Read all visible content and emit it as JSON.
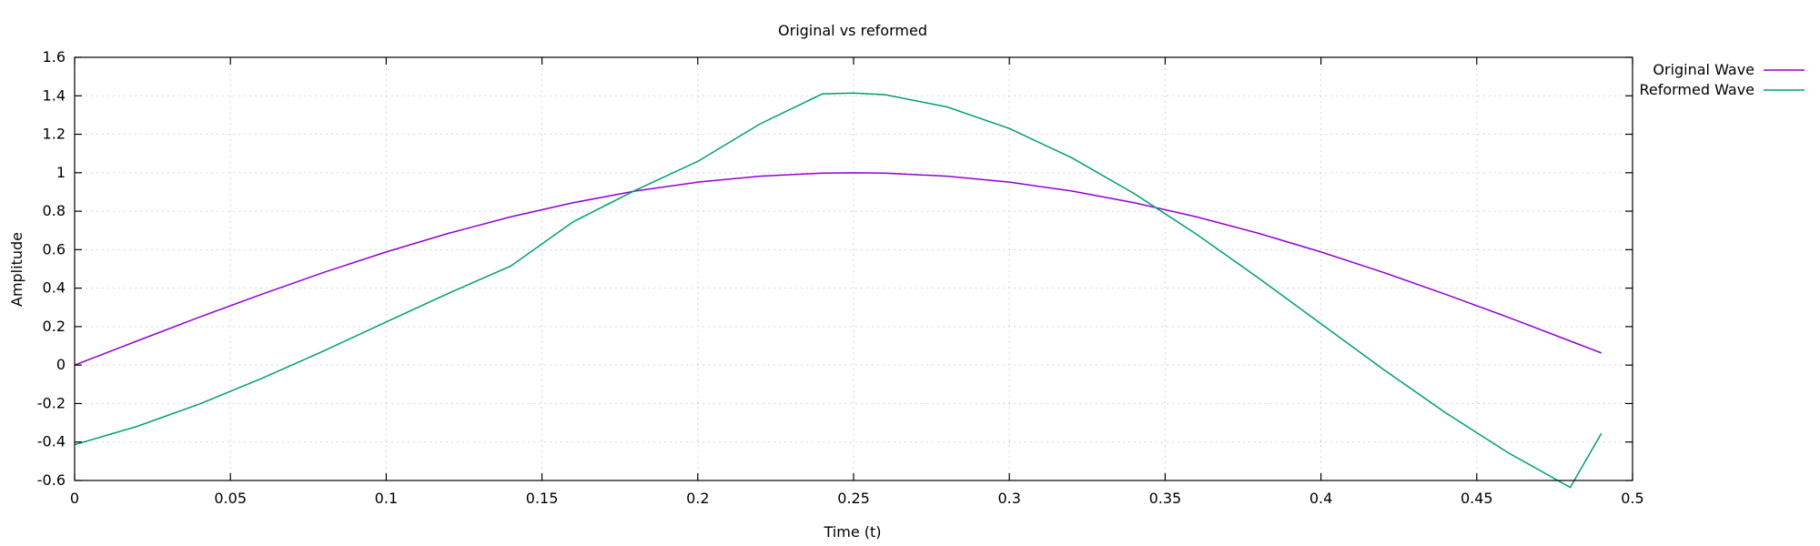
{
  "chart_data": {
    "type": "line",
    "title": "Original vs reformed",
    "xlabel": "Time (t)",
    "ylabel": "Amplitude",
    "xlim": [
      0,
      0.5
    ],
    "ylim": [
      -0.6,
      1.6
    ],
    "x_ticks": [
      0,
      0.05,
      0.1,
      0.15,
      0.2,
      0.25,
      0.3,
      0.35,
      0.4,
      0.45,
      0.5
    ],
    "x_tick_labels": [
      "0",
      "0.05",
      "0.1",
      "0.15",
      "0.2",
      "0.25",
      "0.3",
      "0.35",
      "0.4",
      "0.45",
      "0.5"
    ],
    "y_ticks": [
      -0.6,
      -0.4,
      -0.2,
      0,
      0.2,
      0.4,
      0.6,
      0.8,
      1,
      1.2,
      1.4,
      1.6
    ],
    "y_tick_labels": [
      "-0.6",
      "-0.4",
      "-0.2",
      "0",
      "0.2",
      "0.4",
      "0.6",
      "0.8",
      "1",
      "1.2",
      "1.4",
      "1.6"
    ],
    "grid": true,
    "legend_position": "outside-top-right",
    "x": [
      0,
      0.02,
      0.04,
      0.06,
      0.08,
      0.1,
      0.12,
      0.14,
      0.16,
      0.18,
      0.2,
      0.22,
      0.24,
      0.25,
      0.26,
      0.28,
      0.3,
      0.32,
      0.34,
      0.36,
      0.38,
      0.4,
      0.42,
      0.44,
      0.46,
      0.48,
      0.49
    ],
    "series": [
      {
        "name": "Original Wave",
        "color": "#9400d3",
        "values": [
          0.0,
          0.125,
          0.249,
          0.368,
          0.482,
          0.588,
          0.685,
          0.771,
          0.844,
          0.905,
          0.951,
          0.982,
          0.998,
          1.0,
          0.998,
          0.982,
          0.951,
          0.905,
          0.844,
          0.771,
          0.685,
          0.588,
          0.482,
          0.368,
          0.249,
          0.125,
          0.063
        ]
      },
      {
        "name": "Reformed Wave",
        "color": "#009e73",
        "values": [
          -0.414,
          -0.319,
          -0.203,
          -0.07,
          0.074,
          0.224,
          0.373,
          0.515,
          0.745,
          0.909,
          1.059,
          1.254,
          1.41,
          1.414,
          1.406,
          1.342,
          1.23,
          1.078,
          0.892,
          0.681,
          0.452,
          0.215,
          -0.022,
          -0.248,
          -0.455,
          -0.636,
          -0.355
        ]
      }
    ]
  }
}
